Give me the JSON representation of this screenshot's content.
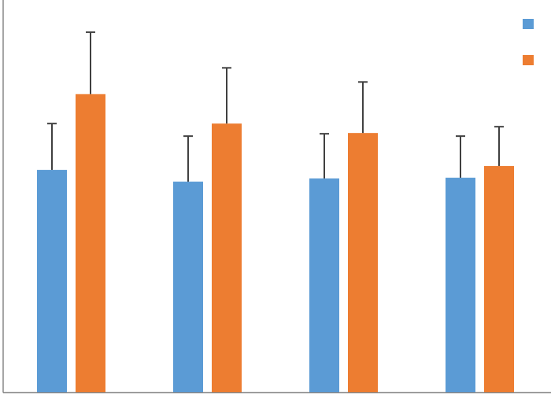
{
  "chart_data": {
    "type": "bar",
    "categories": [
      null,
      null,
      null,
      null
    ],
    "series": [
      {
        "color": "#5b9bd5",
        "values": [
          56.7,
          53.7,
          54.5,
          54.7
        ],
        "errors": [
          11.8,
          11.6,
          11.4,
          10.6
        ]
      },
      {
        "color": "#ed7d31",
        "values": [
          76.0,
          68.5,
          66.1,
          57.7
        ],
        "errors": [
          15.8,
          14.2,
          13.0,
          10.0
        ]
      }
    ],
    "ylim": [
      0,
      100
    ],
    "grid": false,
    "legend": "top-right"
  }
}
